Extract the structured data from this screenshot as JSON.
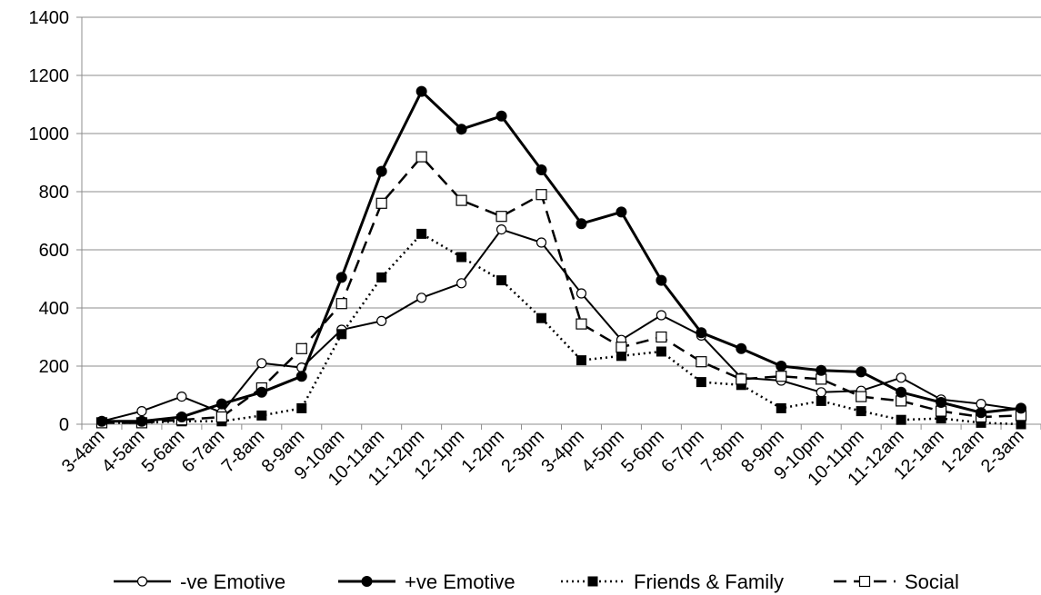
{
  "chart_data": {
    "type": "line",
    "categories": [
      "3-4am",
      "4-5am",
      "5-6am",
      "6-7am",
      "7-8am",
      "8-9am",
      "9-10am",
      "10-11am",
      "11-12pm",
      "12-1pm",
      "1-2pm",
      "2-3pm",
      "3-4pm",
      "4-5pm",
      "5-6pm",
      "6-7pm",
      "7-8pm",
      "8-9pm",
      "9-10pm",
      "10-11pm",
      "11-12am",
      "12-1am",
      "1-2am",
      "2-3am"
    ],
    "ylim": [
      0,
      1400
    ],
    "yticks": [
      0,
      200,
      400,
      600,
      800,
      1000,
      1200,
      1400
    ],
    "ytick_labels": [
      "0",
      "200",
      "400",
      "600",
      "800",
      "1000",
      "1200",
      "1400"
    ],
    "grid": "horizontal",
    "legend": "bottom",
    "title": "",
    "xlabel": "",
    "ylabel": "",
    "series": [
      {
        "name": "-ve Emotive",
        "values": [
          10,
          45,
          95,
          40,
          210,
          195,
          325,
          355,
          435,
          485,
          670,
          625,
          450,
          290,
          375,
          305,
          160,
          150,
          110,
          115,
          160,
          85,
          70,
          50
        ],
        "line": "solid",
        "marker": "open-circle"
      },
      {
        "name": "+ve Emotive",
        "values": [
          10,
          10,
          25,
          70,
          110,
          165,
          505,
          870,
          1145,
          1015,
          1060,
          875,
          690,
          730,
          495,
          315,
          260,
          200,
          185,
          180,
          110,
          75,
          40,
          55
        ],
        "line": "solid",
        "marker": "filled-circle"
      },
      {
        "name": "Friends & Family",
        "values": [
          5,
          5,
          10,
          10,
          30,
          55,
          310,
          505,
          655,
          575,
          495,
          365,
          220,
          235,
          250,
          145,
          135,
          55,
          80,
          45,
          15,
          20,
          5,
          0
        ],
        "line": "dotted",
        "marker": "filled-square"
      },
      {
        "name": "Social",
        "values": [
          5,
          5,
          15,
          25,
          125,
          260,
          415,
          760,
          920,
          770,
          715,
          790,
          345,
          265,
          300,
          215,
          155,
          165,
          155,
          95,
          80,
          45,
          25,
          30
        ],
        "line": "dashed",
        "marker": "open-square"
      }
    ]
  }
}
